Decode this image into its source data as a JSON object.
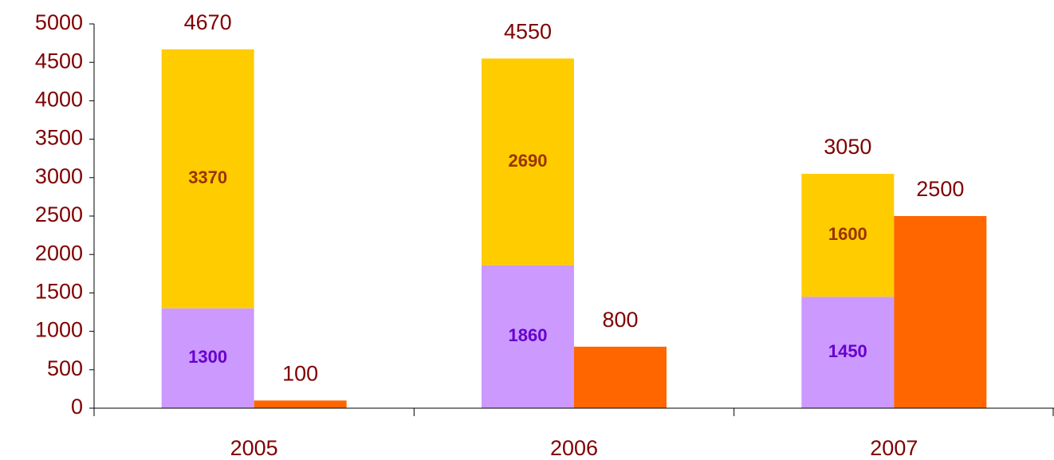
{
  "chart_data": {
    "type": "bar",
    "categories": [
      "2005",
      "2006",
      "2007"
    ],
    "series": [
      {
        "color": "#CC99FF",
        "label_color": "#6600CC",
        "stacked": true,
        "values": [
          1300,
          1860,
          1450
        ]
      },
      {
        "color": "#FFCC00",
        "label_color": "#993300",
        "stacked": true,
        "values": [
          3370,
          2690,
          1600
        ]
      },
      {
        "color": "#FF6600",
        "stacked": false,
        "values": [
          100,
          800,
          2500
        ]
      }
    ],
    "totals": [
      4670,
      4550,
      3050
    ],
    "ylim": [
      0,
      5000
    ],
    "yticks": [
      0,
      500,
      1000,
      1500,
      2000,
      2500,
      3000,
      3500,
      4000,
      4500,
      5000
    ]
  }
}
